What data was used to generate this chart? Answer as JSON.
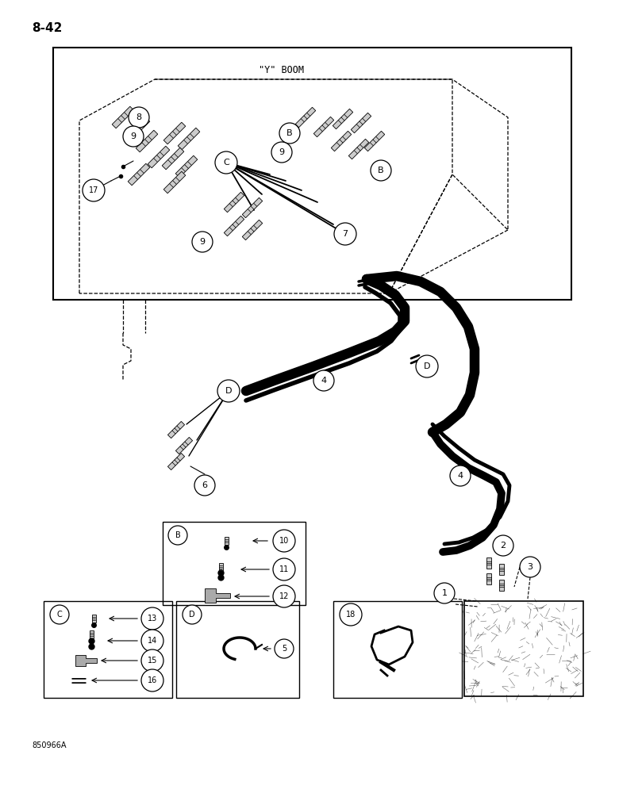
{
  "page_label": "8-42",
  "footer_label": "850966A",
  "bg_color": "#ffffff",
  "title_boom": "\"Y\" BOOM"
}
